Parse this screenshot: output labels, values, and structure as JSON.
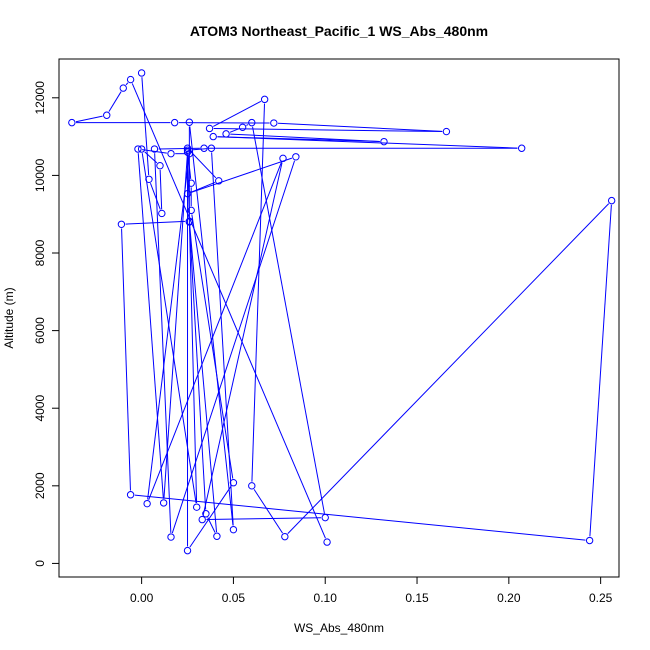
{
  "chart_data": {
    "type": "line",
    "title": "ATOM3 Northeast_Pacific_1 WS_Abs_480nm",
    "xlabel": "WS_Abs_480nm",
    "ylabel": "Altitude (m)",
    "xlim": [
      -0.045,
      0.26
    ],
    "ylim": [
      -350,
      13000
    ],
    "xticks": [
      0.0,
      0.05,
      0.1,
      0.15,
      0.2,
      0.25
    ],
    "xtick_labels": [
      "0.00",
      "0.05",
      "0.10",
      "0.15",
      "0.20",
      "0.25"
    ],
    "yticks": [
      0,
      2000,
      4000,
      6000,
      8000,
      10000,
      12000
    ],
    "ytick_labels": [
      "0",
      "2000",
      "4000",
      "6000",
      "8000",
      "10000",
      "12000"
    ],
    "grid": false,
    "color": "#0000ff",
    "series": [
      {
        "marker": "open-circle",
        "points": [
          {
            "x": 0.0,
            "y": 12640
          },
          {
            "x": 0.004,
            "y": 9900
          },
          {
            "x": 0.011,
            "y": 9020
          },
          {
            "x": 0.01,
            "y": 10250
          },
          {
            "x": 0.0,
            "y": 10680
          },
          {
            "x": 0.03,
            "y": 1450
          },
          {
            "x": 0.025,
            "y": 10700
          },
          {
            "x": 0.042,
            "y": 9860
          },
          {
            "x": 0.025,
            "y": 9530
          },
          {
            "x": 0.084,
            "y": 10480
          },
          {
            "x": 0.016,
            "y": 680
          },
          {
            "x": 0.007,
            "y": 10680
          },
          {
            "x": 0.034,
            "y": 10700
          },
          {
            "x": 0.207,
            "y": 10700
          },
          {
            "x": 0.039,
            "y": 11000
          },
          {
            "x": 0.132,
            "y": 10870
          },
          {
            "x": 0.046,
            "y": 11070
          },
          {
            "x": 0.055,
            "y": 11240
          },
          {
            "x": 0.06,
            "y": 11360
          },
          {
            "x": 0.1,
            "y": 1180
          },
          {
            "x": 0.033,
            "y": 1130
          },
          {
            "x": 0.077,
            "y": 10440
          },
          {
            "x": 0.003,
            "y": 1540
          },
          {
            "x": 0.026,
            "y": 10560
          },
          {
            "x": 0.016,
            "y": 10560
          },
          {
            "x": -0.002,
            "y": 10680
          },
          {
            "x": 0.012,
            "y": 1560
          },
          {
            "x": 0.025,
            "y": 10600
          },
          {
            "x": 0.025,
            "y": 330
          },
          {
            "x": 0.05,
            "y": 2080
          },
          {
            "x": 0.027,
            "y": 9100
          },
          {
            "x": 0.027,
            "y": 9800
          },
          {
            "x": 0.025,
            "y": 10650
          },
          {
            "x": 0.038,
            "y": 10700
          },
          {
            "x": 0.05,
            "y": 870
          },
          {
            "x": 0.026,
            "y": 11370
          },
          {
            "x": 0.026,
            "y": 8800
          },
          {
            "x": 0.035,
            "y": 1280
          },
          {
            "x": 0.041,
            "y": 700
          },
          {
            "x": 0.026,
            "y": 8820
          },
          {
            "x": -0.011,
            "y": 8740
          },
          {
            "x": -0.006,
            "y": 1770
          },
          {
            "x": 0.244,
            "y": 590
          },
          {
            "x": 0.256,
            "y": 9350
          },
          {
            "x": 0.078,
            "y": 690
          },
          {
            "x": 0.06,
            "y": 2000
          },
          {
            "x": 0.067,
            "y": 11960
          },
          {
            "x": 0.037,
            "y": 11210
          },
          {
            "x": 0.166,
            "y": 11130
          },
          {
            "x": 0.072,
            "y": 11350
          },
          {
            "x": 0.018,
            "y": 11360
          },
          {
            "x": -0.038,
            "y": 11360
          },
          {
            "x": -0.019,
            "y": 11550
          },
          {
            "x": -0.01,
            "y": 12250
          },
          {
            "x": -0.006,
            "y": 12470
          },
          {
            "x": 0.101,
            "y": 550
          }
        ]
      }
    ]
  }
}
